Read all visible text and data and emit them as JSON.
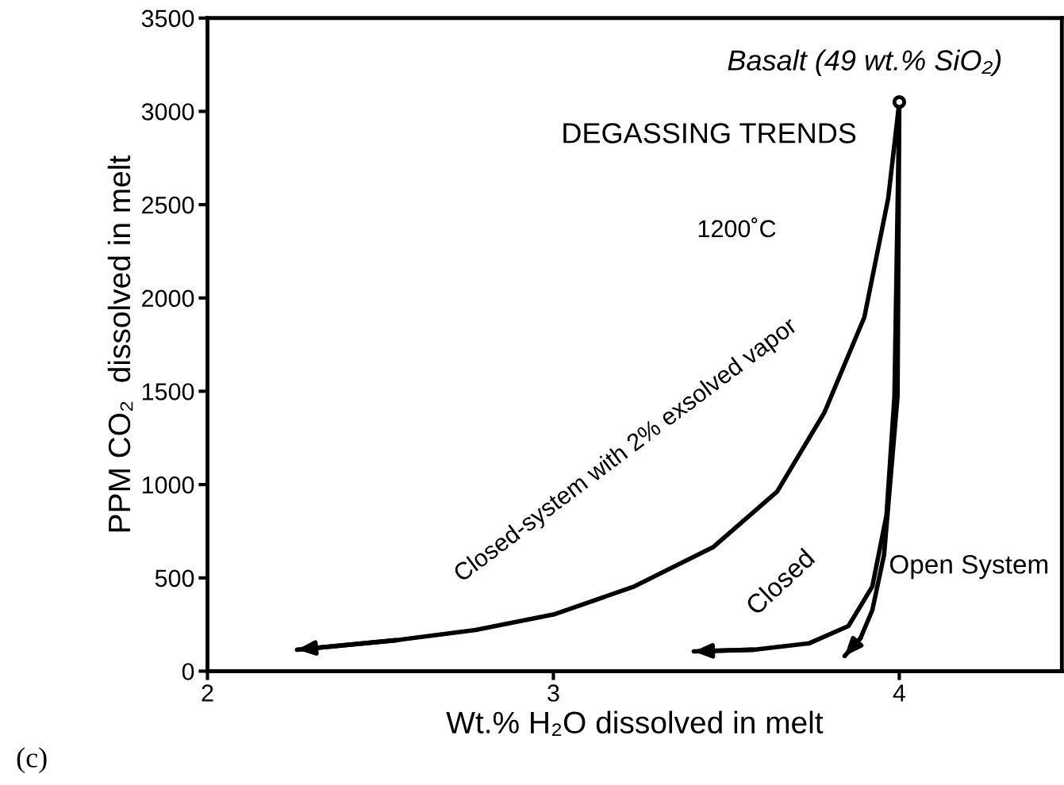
{
  "chart_data": {
    "type": "line",
    "xlabel": "Wt.% H₂O dissolved in melt",
    "ylabel": "PPM CO₂  dissolved in melt",
    "xlim": [
      2,
      4.47
    ],
    "ylim": [
      0,
      3500
    ],
    "xticks": [
      2,
      3,
      4
    ],
    "yticks": [
      0,
      500,
      1000,
      1500,
      2000,
      2500,
      3000,
      3500
    ],
    "grid": false,
    "legend": false,
    "marker": "none",
    "line_style": "solid",
    "annotations": [
      "Basalt (49 wt.% SiO₂)",
      "DEGASSING TRENDS",
      "1200˚C",
      "(c)"
    ],
    "series": [
      {
        "name": "Closed-system with 2% exsolved vapor",
        "color": "#000000",
        "x": [
          4.0,
          3.968,
          3.899,
          3.784,
          3.647,
          3.463,
          3.234,
          3.005,
          2.775,
          2.546,
          2.259
        ],
        "values": [
          3050,
          2534,
          1897,
          1388,
          963,
          666,
          454,
          306,
          221,
          166,
          115
        ]
      },
      {
        "name": "Closed",
        "color": "#000000",
        "x": [
          4.0,
          3.986,
          3.963,
          3.922,
          3.853,
          3.739,
          3.578,
          3.406
        ],
        "values": [
          3050,
          1473,
          836,
          454,
          242,
          149,
          115,
          106
        ]
      },
      {
        "name": "Open System",
        "color": "#000000",
        "x": [
          4.0,
          3.995,
          3.956,
          3.922,
          3.888,
          3.842
        ],
        "values": [
          3050,
          1473,
          624,
          327,
          178,
          81
        ]
      },
      {
        "type": "scatter",
        "marker": "circle",
        "color": "#000000",
        "x": [
          4.0
        ],
        "values": [
          3050
        ]
      }
    ]
  }
}
